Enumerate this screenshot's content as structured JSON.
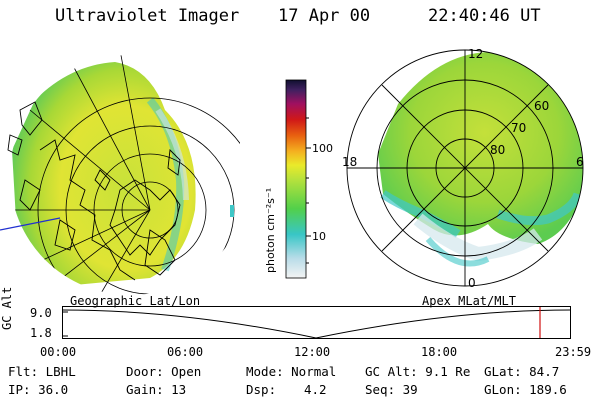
{
  "header": {
    "title": "Ultraviolet Imager",
    "date": "17 Apr 00",
    "time": "22:40:46 UT"
  },
  "colorbar": {
    "unit_label": "photon cm⁻²s⁻¹",
    "tick_100": "100",
    "tick_10": "10"
  },
  "geo_panel": {
    "label": "Geographic Lat/Lon"
  },
  "polar_panel": {
    "label": "Apex MLat/MLT",
    "mlt_top": "12",
    "mlt_left": "18",
    "mlt_right": "6",
    "mlt_bottom": "0",
    "lat_60": "60",
    "lat_70": "70",
    "lat_80": "80"
  },
  "orbit": {
    "axis_label": "GC Alt",
    "y_top": "9.0",
    "y_bottom": "1.8",
    "x_ticks": [
      "00:00",
      "06:00",
      "12:00",
      "18:00",
      "23:59"
    ]
  },
  "info": {
    "filter": "Flt: LBHL",
    "ip": "IP: 36.0",
    "door": "Door: Open",
    "gain": "Gain: 13",
    "mode": "Mode: Normal",
    "dsp_label": "Dsp:",
    "dsp_value": "4.2",
    "gc_alt": "GC Alt: 9.1 Re",
    "seq": "Seq: 39",
    "glat": "GLat: 84.7",
    "glon": "GLon: 189.6"
  },
  "colors": {
    "aurora_green": "#7ccd2a",
    "aurora_yellow": "#e4e82a",
    "aurora_cyan": "#3fc7c7",
    "cursor_red": "#d01010"
  }
}
